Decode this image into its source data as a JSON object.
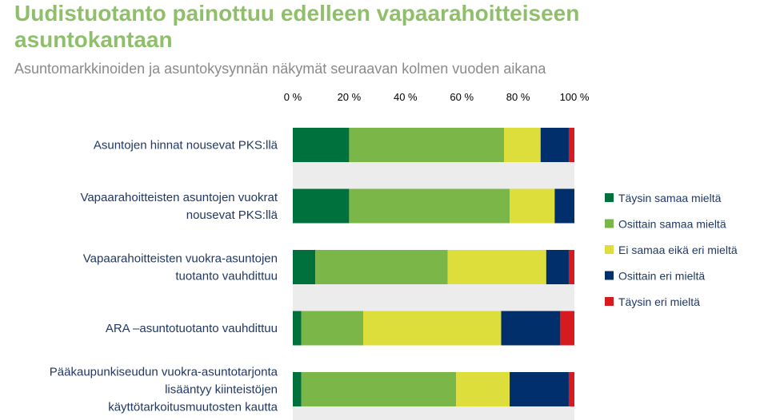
{
  "title": "Uudistuotanto painottuu edelleen vapaarahoitteiseen asuntokantaan",
  "subtitle": "Asuntomarkkinoiden ja asuntokysynnän näkymät seuraavan kolmen vuoden aikana",
  "chart_data": {
    "type": "bar",
    "orientation": "horizontal",
    "stacked": true,
    "xlim": [
      0,
      100
    ],
    "x_ticks": [
      "0 %",
      "20 %",
      "40 %",
      "60 %",
      "80 %",
      "100 %"
    ],
    "x_axis_position": "top",
    "grid": false,
    "legend_position": "right",
    "categories": [
      [
        "Asuntojen hinnat nousevat PKS:llä"
      ],
      [
        "Vapaarahoitteisten asuntojen vuokrat",
        "nousevat PKS:llä"
      ],
      [
        "Vapaarahoitteisten vuokra-asuntojen",
        "tuotanto vauhdittuu"
      ],
      [
        "ARA –asuntotuotanto vauhdittuu"
      ],
      [
        "Pääkaupunkiseudun vuokra-asuntotarjonta",
        "lisääntyy kiinteistöjen",
        "käyttötarkoitusmuutosten kautta"
      ]
    ],
    "series": [
      {
        "name": "Täysin samaa mieltä",
        "color": "#00703c",
        "values": [
          20,
          20,
          8,
          3,
          3
        ]
      },
      {
        "name": "Osittain samaa mieltä",
        "color": "#7ab648",
        "values": [
          55,
          57,
          47,
          22,
          55
        ]
      },
      {
        "name": "Ei samaa eikä eri mieltä",
        "color": "#dddd3b",
        "values": [
          13,
          16,
          35,
          49,
          19
        ]
      },
      {
        "name": "Osittain eri mieltä",
        "color": "#002f6c",
        "values": [
          10,
          7,
          8,
          21,
          21
        ]
      },
      {
        "name": "Täysin eri mieltä",
        "color": "#d71920",
        "values": [
          2,
          0,
          2,
          5,
          2
        ]
      }
    ]
  }
}
